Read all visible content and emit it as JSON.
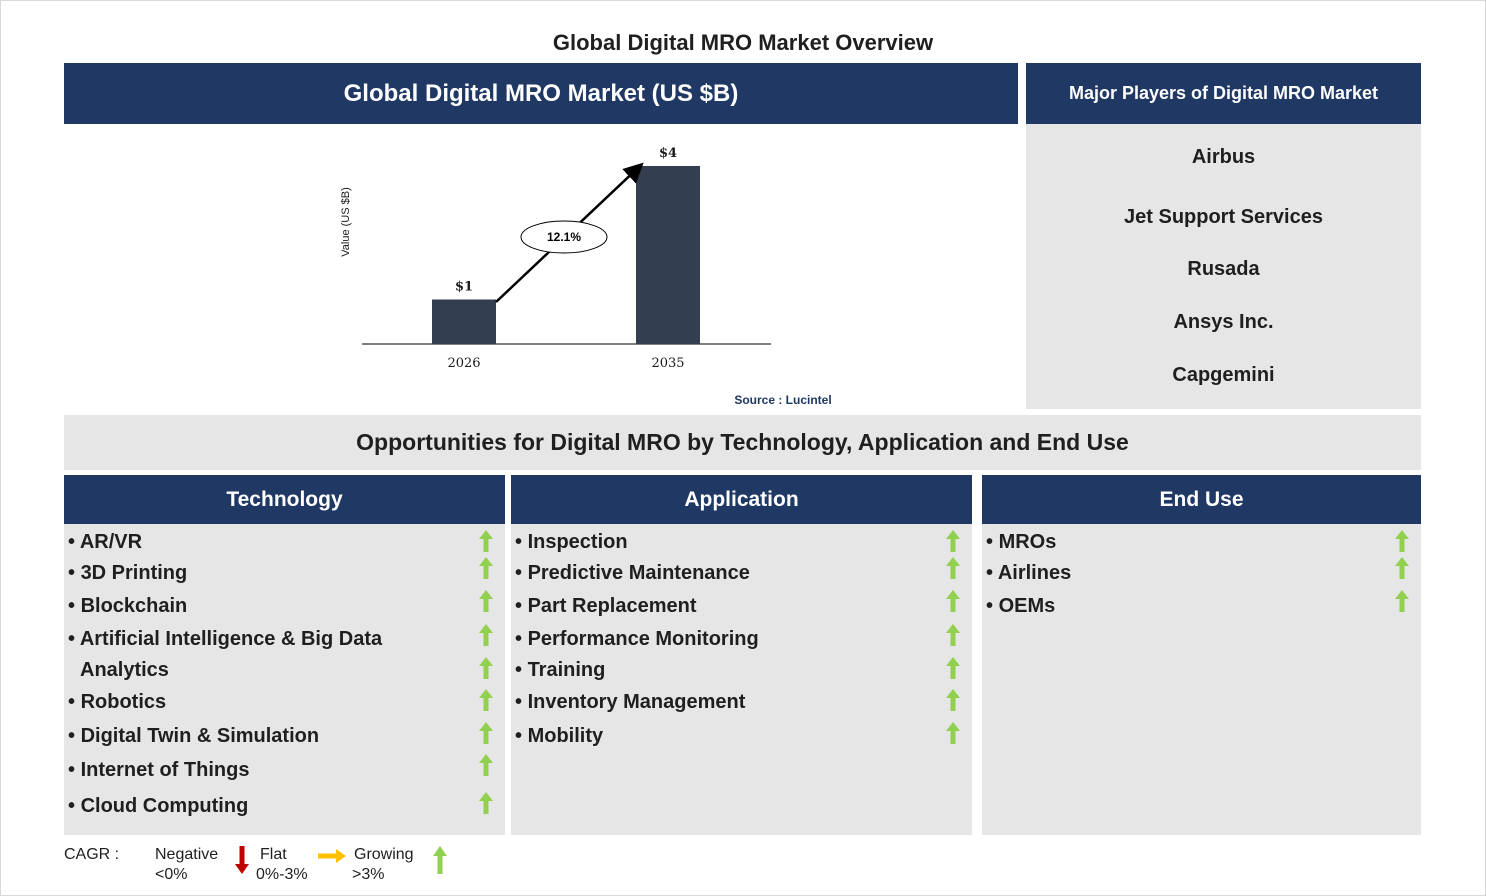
{
  "page_title": "Global Digital MRO Market Overview",
  "market_header": "Global Digital MRO Market (US $B)",
  "players_header": "Major Players of Digital MRO Market",
  "players": [
    "Airbus",
    "Jet Support Services",
    "Rusada",
    "Ansys Inc.",
    "Capgemini"
  ],
  "chart_data": {
    "type": "bar",
    "categories": [
      "2026",
      "2035"
    ],
    "values": [
      1,
      4
    ],
    "value_labels": [
      "$1",
      "$4"
    ],
    "ylabel": "Value (US $B)",
    "cagr_label": "12.1%",
    "source": "Source : Lucintel",
    "bar_color": "#333f50"
  },
  "opportunities_title": "Opportunities for Digital MRO by Technology, Application and End Use",
  "columns": {
    "technology": {
      "title": "Technology",
      "items": [
        "AR/VR",
        "3D Printing",
        "Blockchain",
        "Artificial Intelligence & Big Data",
        "Analytics",
        "Robotics",
        "Digital Twin & Simulation",
        "Internet of Things",
        "Cloud Computing"
      ]
    },
    "application": {
      "title": "Application",
      "items": [
        "Inspection",
        "Predictive Maintenance",
        "Part Replacement",
        "Performance Monitoring",
        "Training",
        "Inventory Management",
        "Mobility"
      ]
    },
    "end_use": {
      "title": "End Use",
      "items": [
        "MROs",
        "Airlines",
        "OEMs"
      ]
    }
  },
  "legend": {
    "cagr": "CAGR  :",
    "negative": "Negative",
    "negative_range": "<0%",
    "flat": "Flat",
    "flat_range": "0%-3%",
    "growing": "Growing",
    "growing_range": ">3%"
  },
  "colors": {
    "navy": "#1f3864",
    "panel_gray": "#e7e6e6",
    "growth_green": "#92d050",
    "negative_red": "#c00000",
    "flat_yellow": "#ffc000"
  }
}
